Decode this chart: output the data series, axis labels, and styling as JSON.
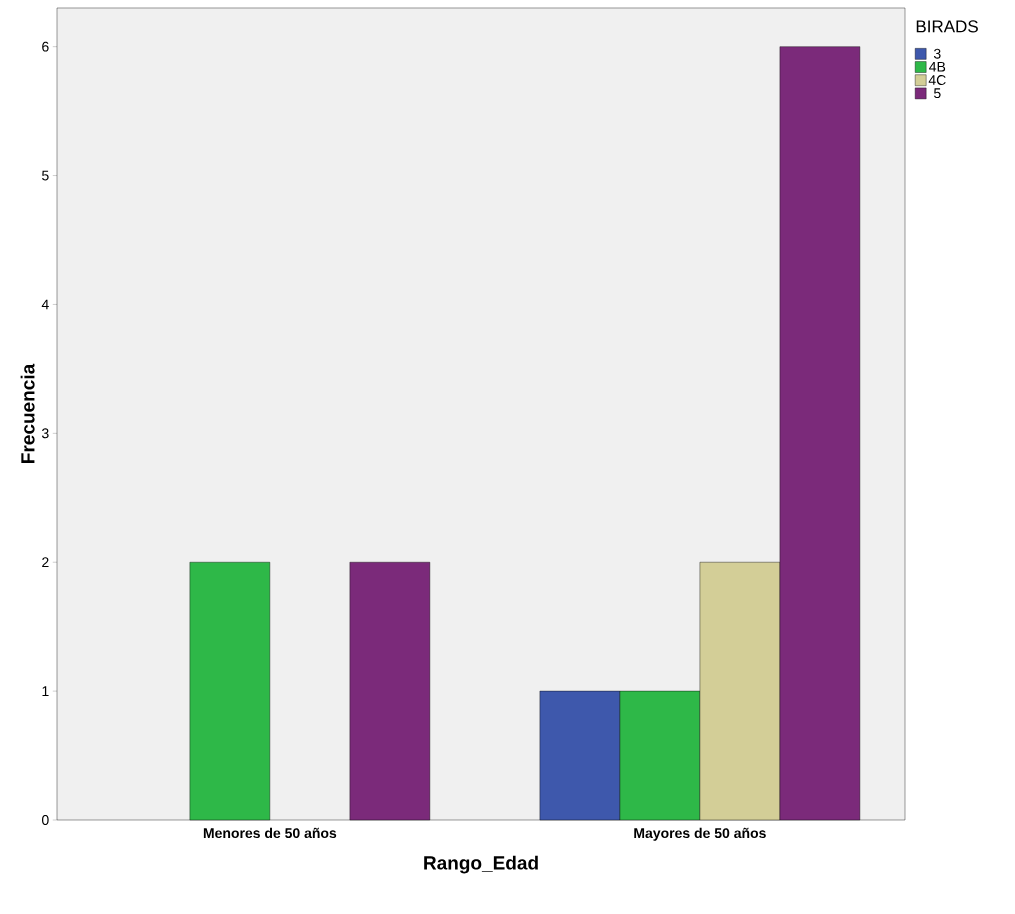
{
  "chart_data": {
    "type": "bar",
    "xlabel": "Rango_Edad",
    "ylabel": "Frecuencia",
    "legend_title": "BIRADS",
    "categories": [
      "Menores de 50 años",
      "Mayores de 50 años"
    ],
    "series": [
      {
        "name": "3",
        "color": "#3e58ac",
        "values": [
          0,
          1
        ]
      },
      {
        "name": "4B",
        "color": "#2eb848",
        "values": [
          2,
          1
        ]
      },
      {
        "name": "4C",
        "color": "#d3ce97",
        "values": [
          0,
          2
        ]
      },
      {
        "name": "5",
        "color": "#7b2a7a",
        "values": [
          2,
          6
        ]
      }
    ],
    "ylim": [
      0,
      6.3
    ],
    "yticks": [
      0,
      1,
      2,
      3,
      4,
      5,
      6
    ],
    "legend": "top right"
  }
}
